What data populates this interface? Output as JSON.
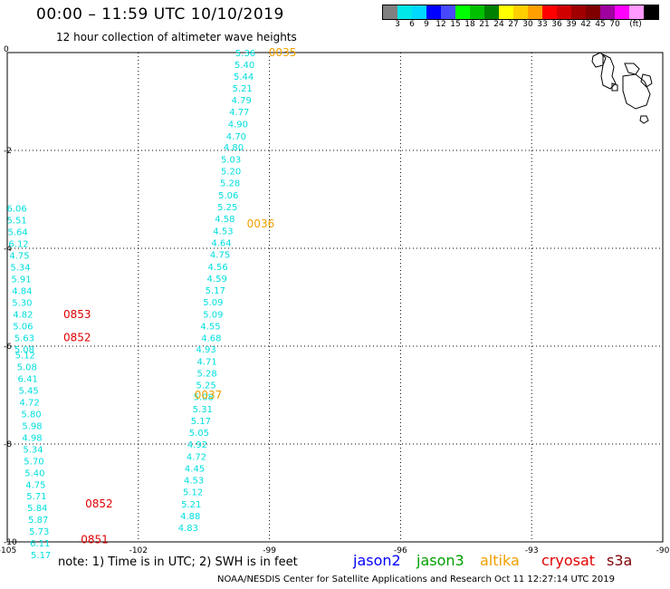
{
  "title": "00:00 – 11:59 UTC 10/10/2019",
  "subtitle": "12 hour collection of altimeter wave heights",
  "legend": {
    "unit": "(ft)",
    "colors": [
      "#808080",
      "#00e8e8",
      "#00d8ff",
      "#0000ff",
      "#4848ff",
      "#00ff00",
      "#00c000",
      "#008000",
      "#ffff00",
      "#ffd000",
      "#ffa000",
      "#ff0000",
      "#d00000",
      "#a00000",
      "#800000",
      "#a000a0",
      "#ff00ff",
      "#ff99ff",
      "#000000"
    ],
    "labels": [
      "3",
      "6",
      "9",
      "12",
      "15",
      "18",
      "21",
      "24",
      "27",
      "30",
      "33",
      "36",
      "39",
      "42",
      "45",
      "70"
    ]
  },
  "axes": {
    "x_ticks": [
      "-105",
      "-102",
      "-99",
      "-96",
      "-93",
      "-90"
    ],
    "y_ticks": [
      "0",
      "-2",
      "-4",
      "-6",
      "-8",
      "-10"
    ]
  },
  "tracks": [
    {
      "satellite": "altika",
      "color": "#f0a000",
      "time_labels": [
        {
          "label": "0035",
          "lon": -98.7,
          "lat": 0.0
        },
        {
          "label": "0036",
          "lon": -99.2,
          "lat": -3.5
        },
        {
          "label": "0037",
          "lon": -100.4,
          "lat": -7.0
        }
      ],
      "points": [
        {
          "lon": -99.55,
          "lat": 0.0,
          "swh": "5.36"
        },
        {
          "lon": -99.57,
          "lat": -0.24,
          "swh": "5.40"
        },
        {
          "lon": -99.59,
          "lat": -0.48,
          "swh": "5.44"
        },
        {
          "lon": -99.62,
          "lat": -0.72,
          "swh": "5.21"
        },
        {
          "lon": -99.64,
          "lat": -0.96,
          "swh": "4.79"
        },
        {
          "lon": -99.69,
          "lat": -1.2,
          "swh": "4.77"
        },
        {
          "lon": -99.72,
          "lat": -1.45,
          "swh": "4.90"
        },
        {
          "lon": -99.76,
          "lat": -1.7,
          "swh": "4.70"
        },
        {
          "lon": -99.82,
          "lat": -1.93,
          "swh": "4.80"
        },
        {
          "lon": -99.88,
          "lat": -2.18,
          "swh": "5.03"
        },
        {
          "lon": -99.88,
          "lat": -2.42,
          "swh": "5.20"
        },
        {
          "lon": -99.9,
          "lat": -2.66,
          "swh": "5.28"
        },
        {
          "lon": -99.94,
          "lat": -2.91,
          "swh": "5.06"
        },
        {
          "lon": -99.96,
          "lat": -3.15,
          "swh": "5.25"
        },
        {
          "lon": -100.02,
          "lat": -3.39,
          "swh": "4.58"
        },
        {
          "lon": -100.06,
          "lat": -3.64,
          "swh": "4.53"
        },
        {
          "lon": -100.1,
          "lat": -3.88,
          "swh": "4.64"
        },
        {
          "lon": -100.13,
          "lat": -4.12,
          "swh": "4.75"
        },
        {
          "lon": -100.18,
          "lat": -4.37,
          "swh": "4.56"
        },
        {
          "lon": -100.2,
          "lat": -4.61,
          "swh": "4.59"
        },
        {
          "lon": -100.24,
          "lat": -4.85,
          "swh": "5.17"
        },
        {
          "lon": -100.29,
          "lat": -5.09,
          "swh": "5.09"
        },
        {
          "lon": -100.29,
          "lat": -5.34,
          "swh": "5.09"
        },
        {
          "lon": -100.35,
          "lat": -5.58,
          "swh": "4.55"
        },
        {
          "lon": -100.33,
          "lat": -5.82,
          "swh": "4.68"
        },
        {
          "lon": -100.45,
          "lat": -6.06,
          "swh": "4.93"
        },
        {
          "lon": -100.43,
          "lat": -6.31,
          "swh": "4.71"
        },
        {
          "lon": -100.43,
          "lat": -6.55,
          "swh": "5.28"
        },
        {
          "lon": -100.45,
          "lat": -6.79,
          "swh": "5.25"
        },
        {
          "lon": -100.51,
          "lat": -7.03,
          "swh": "5.08"
        },
        {
          "lon": -100.53,
          "lat": -7.28,
          "swh": "5.31"
        },
        {
          "lon": -100.57,
          "lat": -7.52,
          "swh": "5.17"
        },
        {
          "lon": -100.61,
          "lat": -7.76,
          "swh": "5.05"
        },
        {
          "lon": -100.65,
          "lat": -8.0,
          "swh": "4.92"
        },
        {
          "lon": -100.67,
          "lat": -8.25,
          "swh": "4.72"
        },
        {
          "lon": -100.71,
          "lat": -8.49,
          "swh": "4.45"
        },
        {
          "lon": -100.73,
          "lat": -8.73,
          "swh": "4.53"
        },
        {
          "lon": -100.75,
          "lat": -8.97,
          "swh": "5.12"
        },
        {
          "lon": -100.79,
          "lat": -9.22,
          "swh": "5.21"
        },
        {
          "lon": -100.81,
          "lat": -9.46,
          "swh": "4.88"
        },
        {
          "lon": -100.86,
          "lat": -9.7,
          "swh": "4.83"
        }
      ]
    },
    {
      "satellite": "cryosat",
      "color": "#e00000",
      "time_labels": [
        {
          "label": "0853",
          "lon": -103.4,
          "lat": -5.35
        },
        {
          "label": "0852",
          "lon": -103.4,
          "lat": -5.82
        },
        {
          "label": "0852",
          "lon": -102.9,
          "lat": -9.22
        },
        {
          "label": "0851",
          "lon": -103.0,
          "lat": -9.95
        }
      ],
      "points": [
        {
          "lon": -104.78,
          "lat": -3.18,
          "swh": "6.06"
        },
        {
          "lon": -104.78,
          "lat": -3.42,
          "swh": "5.51"
        },
        {
          "lon": -104.76,
          "lat": -3.66,
          "swh": "5.64"
        },
        {
          "lon": -104.74,
          "lat": -3.9,
          "swh": "6.12"
        },
        {
          "lon": -104.72,
          "lat": -4.14,
          "swh": "4.75"
        },
        {
          "lon": -104.7,
          "lat": -4.38,
          "swh": "5.34"
        },
        {
          "lon": -104.68,
          "lat": -4.62,
          "swh": "5.91"
        },
        {
          "lon": -104.66,
          "lat": -4.86,
          "swh": "4.84"
        },
        {
          "lon": -104.66,
          "lat": -5.1,
          "swh": "5.30"
        },
        {
          "lon": -104.64,
          "lat": -5.34,
          "swh": "4.82"
        },
        {
          "lon": -104.64,
          "lat": -5.58,
          "swh": "5.06"
        },
        {
          "lon": -104.61,
          "lat": -5.82,
          "swh": "5.63"
        },
        {
          "lon": -104.61,
          "lat": -6.06,
          "swh": "5.08"
        },
        {
          "lon": -104.59,
          "lat": -6.18,
          "swh": "5.12"
        },
        {
          "lon": -104.55,
          "lat": -6.42,
          "swh": "5.08"
        },
        {
          "lon": -104.53,
          "lat": -6.66,
          "swh": "6.41"
        },
        {
          "lon": -104.51,
          "lat": -6.9,
          "swh": "5.45"
        },
        {
          "lon": -104.49,
          "lat": -7.14,
          "swh": "4.72"
        },
        {
          "lon": -104.45,
          "lat": -7.38,
          "swh": "5.80"
        },
        {
          "lon": -104.43,
          "lat": -7.62,
          "swh": "5.98"
        },
        {
          "lon": -104.43,
          "lat": -7.86,
          "swh": "4.98"
        },
        {
          "lon": -104.41,
          "lat": -8.1,
          "swh": "5.34"
        },
        {
          "lon": -104.39,
          "lat": -8.34,
          "swh": "5.70"
        },
        {
          "lon": -104.37,
          "lat": -8.58,
          "swh": "5.40"
        },
        {
          "lon": -104.35,
          "lat": -8.82,
          "swh": "4.75"
        },
        {
          "lon": -104.33,
          "lat": -9.06,
          "swh": "5.71"
        },
        {
          "lon": -104.31,
          "lat": -9.3,
          "swh": "5.84"
        },
        {
          "lon": -104.29,
          "lat": -9.54,
          "swh": "5.87"
        },
        {
          "lon": -104.27,
          "lat": -9.78,
          "swh": "5.73"
        },
        {
          "lon": -104.25,
          "lat": -10.02,
          "swh": "6.11"
        },
        {
          "lon": -104.23,
          "lat": -10.26,
          "swh": "5.17"
        }
      ]
    }
  ],
  "note": "note: 1) Time is in UTC; 2) SWH is in feet",
  "satellites": [
    {
      "name": "jason2",
      "color": "#0000ff"
    },
    {
      "name": "jason3",
      "color": "#00a000"
    },
    {
      "name": "altika",
      "color": "#f0a000"
    },
    {
      "name": "cryosat",
      "color": "#e00000"
    },
    {
      "name": "s3a",
      "color": "#800000"
    }
  ],
  "credit": "NOAA/NESDIS Center for Satellite Applications and Research     Oct 11 12:27:14 UTC 2019"
}
